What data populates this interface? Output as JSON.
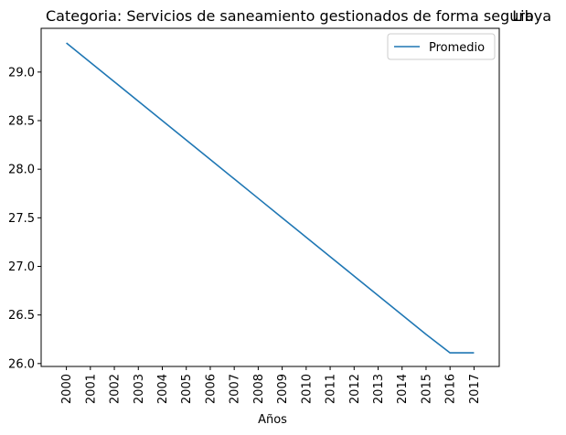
{
  "chart_data": {
    "type": "line",
    "title_left": "Categoria: Servicios de saneamiento gestionados de forma segura",
    "title_right": "Libya",
    "xlabel": "Años",
    "ylabel": "",
    "x": [
      "2000",
      "2001",
      "2002",
      "2003",
      "2004",
      "2005",
      "2006",
      "2007",
      "2008",
      "2009",
      "2010",
      "2011",
      "2012",
      "2013",
      "2014",
      "2015",
      "2016",
      "2017"
    ],
    "series": [
      {
        "name": "Promedio",
        "color": "#1f77b4",
        "values": [
          29.3,
          29.1,
          28.9,
          28.7,
          28.5,
          28.3,
          28.1,
          27.9,
          27.7,
          27.5,
          27.3,
          27.1,
          26.9,
          26.7,
          26.5,
          26.3,
          26.11,
          26.11
        ]
      }
    ],
    "ylim": [
      25.97,
      29.45
    ],
    "yticks": [
      "26.0",
      "26.5",
      "27.0",
      "27.5",
      "28.0",
      "28.5",
      "29.0"
    ],
    "grid": false,
    "legend_position": "top-right"
  }
}
